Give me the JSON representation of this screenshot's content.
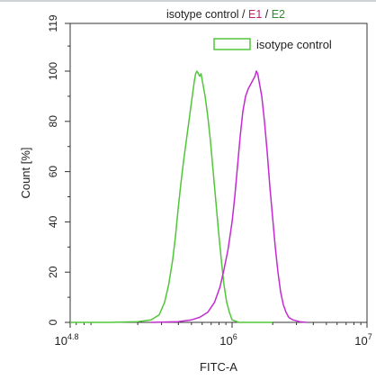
{
  "chart_data": {
    "type": "line",
    "title_parts": [
      {
        "text": "isotype control",
        "color": "#222222"
      },
      {
        "text": " / ",
        "color": "#222222"
      },
      {
        "text": "E1",
        "color": "#c0206a"
      },
      {
        "text": " / ",
        "color": "#222222"
      },
      {
        "text": "E2",
        "color": "#2e8b2e"
      }
    ],
    "xlabel": "FITC-A",
    "ylabel": "Count [%]",
    "xscale": "log",
    "xlim_log10": [
      4.8,
      7
    ],
    "ylim": [
      0,
      119
    ],
    "x_ticks": [
      {
        "base": "10",
        "exp": "4.8",
        "value": 4.8
      },
      {
        "base": "10",
        "exp": "6",
        "value": 6
      },
      {
        "base": "10",
        "exp": "7",
        "value": 7
      }
    ],
    "y_ticks": [
      {
        "label": "0",
        "value": 0
      },
      {
        "label": "20",
        "value": 20
      },
      {
        "label": "40",
        "value": 40
      },
      {
        "label": "60",
        "value": 60
      },
      {
        "label": "80",
        "value": 80
      },
      {
        "label": "100",
        "value": 100
      },
      {
        "label": "119",
        "value": 119
      }
    ],
    "legend": {
      "position": "top-right",
      "entries": [
        {
          "label": "isotype control",
          "color": "#52c63a"
        }
      ]
    },
    "series": [
      {
        "name": "isotype control",
        "color": "#52c63a",
        "points": [
          [
            4.8,
            0
          ],
          [
            5.1,
            0
          ],
          [
            5.3,
            0.3
          ],
          [
            5.4,
            1
          ],
          [
            5.46,
            3
          ],
          [
            5.5,
            8
          ],
          [
            5.53,
            15
          ],
          [
            5.56,
            25
          ],
          [
            5.58,
            34
          ],
          [
            5.6,
            45
          ],
          [
            5.62,
            55
          ],
          [
            5.64,
            64
          ],
          [
            5.66,
            72
          ],
          [
            5.68,
            80
          ],
          [
            5.7,
            88
          ],
          [
            5.71,
            92
          ],
          [
            5.72,
            96
          ],
          [
            5.73,
            99
          ],
          [
            5.74,
            100
          ],
          [
            5.76,
            98
          ],
          [
            5.77,
            99
          ],
          [
            5.78,
            96
          ],
          [
            5.8,
            90
          ],
          [
            5.82,
            82
          ],
          [
            5.84,
            72
          ],
          [
            5.86,
            60
          ],
          [
            5.88,
            48
          ],
          [
            5.9,
            36
          ],
          [
            5.92,
            25
          ],
          [
            5.94,
            15
          ],
          [
            5.96,
            8
          ],
          [
            5.98,
            4
          ],
          [
            6.0,
            1
          ],
          [
            6.05,
            0
          ],
          [
            6.3,
            0
          ]
        ]
      },
      {
        "color": "#c42ad1",
        "points": [
          [
            5.4,
            0
          ],
          [
            5.6,
            0.3
          ],
          [
            5.7,
            1
          ],
          [
            5.76,
            2
          ],
          [
            5.82,
            4
          ],
          [
            5.87,
            8
          ],
          [
            5.91,
            14
          ],
          [
            5.94,
            21
          ],
          [
            5.97,
            29
          ],
          [
            6.0,
            40
          ],
          [
            6.02,
            50
          ],
          [
            6.04,
            62
          ],
          [
            6.06,
            74
          ],
          [
            6.08,
            84
          ],
          [
            6.1,
            90
          ],
          [
            6.12,
            93
          ],
          [
            6.14,
            95
          ],
          [
            6.16,
            97
          ],
          [
            6.17,
            98
          ],
          [
            6.18,
            100
          ],
          [
            6.19,
            99
          ],
          [
            6.2,
            96
          ],
          [
            6.22,
            90
          ],
          [
            6.24,
            80
          ],
          [
            6.26,
            68
          ],
          [
            6.28,
            54
          ],
          [
            6.3,
            42
          ],
          [
            6.32,
            30
          ],
          [
            6.34,
            20
          ],
          [
            6.36,
            12
          ],
          [
            6.38,
            7
          ],
          [
            6.4,
            4
          ],
          [
            6.42,
            2
          ],
          [
            6.45,
            1
          ],
          [
            6.5,
            0.3
          ],
          [
            6.55,
            0
          ]
        ]
      }
    ]
  }
}
